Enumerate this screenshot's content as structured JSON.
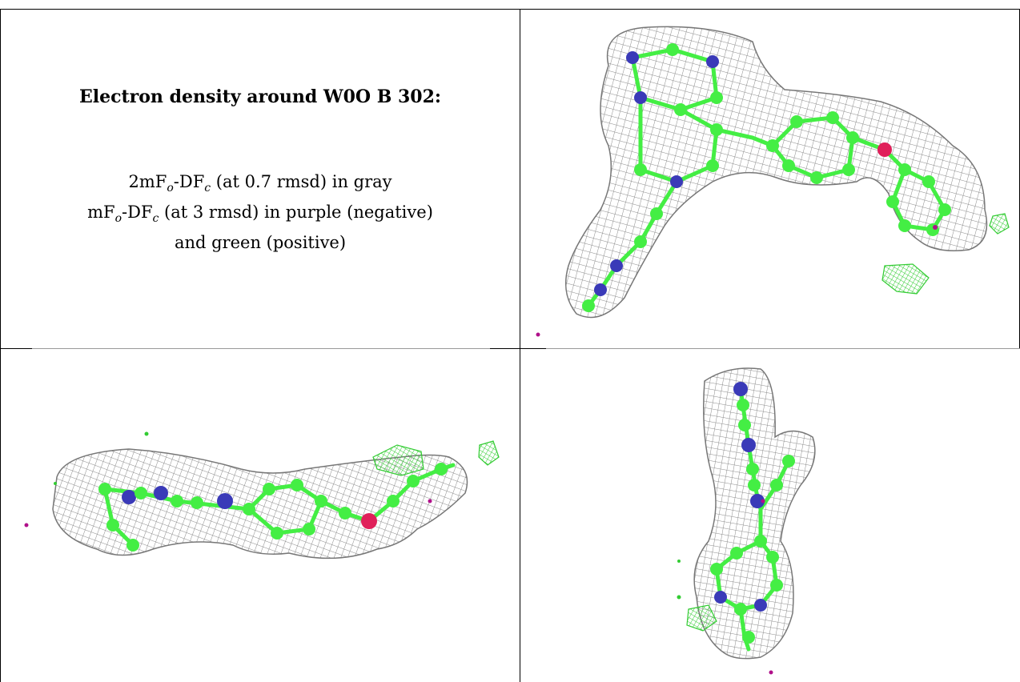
{
  "legend": {
    "title": "Electron density around W0O B 302:",
    "line1": {
      "a": "2mF",
      "a_sub": "o",
      "b": "-DF",
      "b_sub": "c",
      "rest": " (at 0.7 rmsd) in gray"
    },
    "line2": {
      "a": "mF",
      "a_sub": "o",
      "b": "-DF",
      "b_sub": "c",
      "rest": " (at 3 rmsd) in purple (negative)"
    },
    "line3": "and green (positive)"
  },
  "colors": {
    "mesh_2fofc": "#8a8a8a",
    "positive": "#3ddc3d",
    "negative": "#b0108a",
    "carbon": "#44ee44",
    "nitrogen": "#3a3ab8",
    "oxygen": "#e0205a"
  },
  "panels": [
    {
      "name": "view-top-right",
      "contour_2fofc_rmsd": 0.7,
      "contour_fofc_rmsd": 3
    },
    {
      "name": "view-bottom-left",
      "contour_2fofc_rmsd": 0.7,
      "contour_fofc_rmsd": 3
    },
    {
      "name": "view-bottom-right",
      "contour_2fofc_rmsd": 0.7,
      "contour_fofc_rmsd": 3
    }
  ]
}
